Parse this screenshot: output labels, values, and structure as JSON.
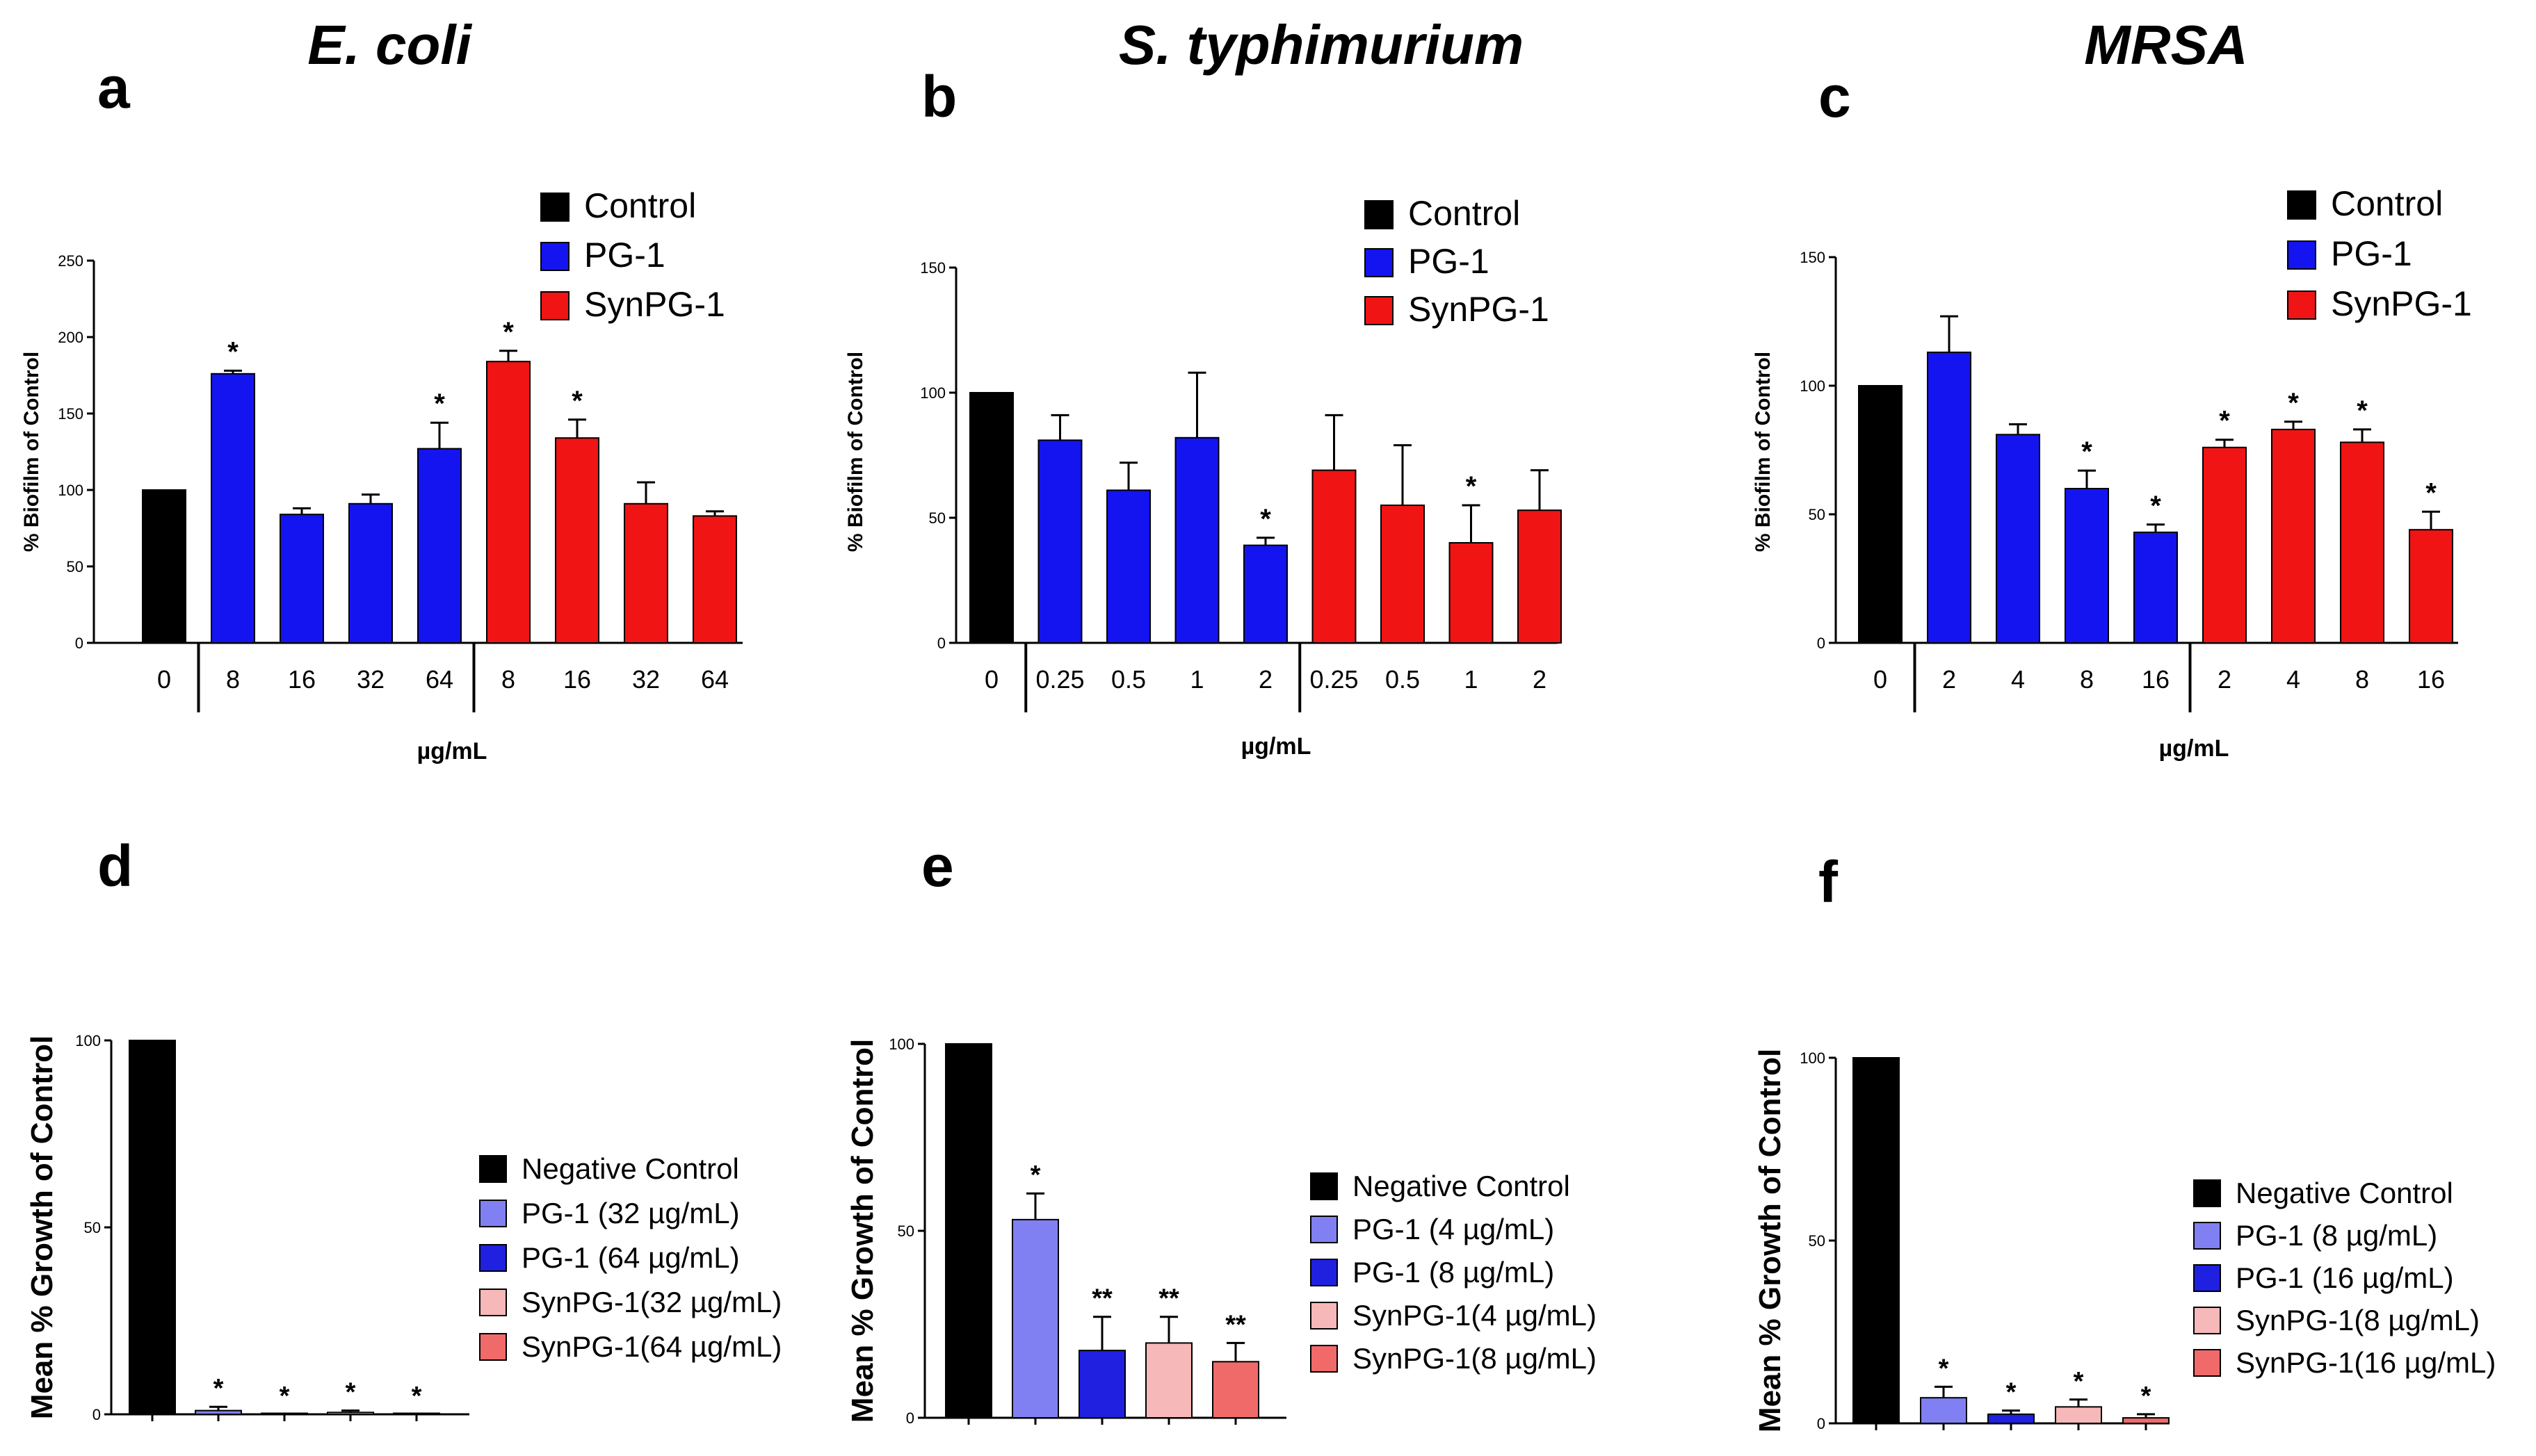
{
  "figure": {
    "organisms": [
      "E. coli",
      "S. typhimurium",
      "MRSA"
    ],
    "panel_letters": [
      "a",
      "b",
      "c",
      "d",
      "e",
      "f"
    ]
  },
  "colors": {
    "control": "#000000",
    "pg1": "#1414f0",
    "synpg1": "#f01414",
    "pg1_low": "#8080f2",
    "pg1_high": "#2020e0",
    "synpg1_low": "#f6b8b8",
    "synpg1_high": "#f06a6a"
  },
  "chart_data": [
    {
      "panel": "a",
      "organism": "E. coli",
      "type": "bar",
      "ylabel": "% Biofilm of Control",
      "xlabel": "µg/mL",
      "ylim": [
        0,
        250
      ],
      "yticks": [
        "0",
        "50",
        "100",
        "150",
        "200",
        "250"
      ],
      "categories": [
        "0",
        "8",
        "16",
        "32",
        "64",
        "8",
        "16",
        "32",
        "64"
      ],
      "groups": [
        "control",
        "pg1",
        "pg1",
        "pg1",
        "pg1",
        "synpg1",
        "synpg1",
        "synpg1",
        "synpg1"
      ],
      "values": [
        100,
        176,
        84,
        91,
        127,
        184,
        134,
        91,
        83
      ],
      "errors": [
        0,
        2,
        4,
        6,
        17,
        7,
        12,
        14,
        3
      ],
      "significance": [
        "",
        "*",
        "",
        "",
        "*",
        "*",
        "*",
        "",
        ""
      ],
      "legend": [
        "Control",
        "PG-1",
        "SynPG-1"
      ]
    },
    {
      "panel": "b",
      "organism": "S. typhimurium",
      "type": "bar",
      "ylabel": "% Biofilm of Control",
      "xlabel": "µg/mL",
      "ylim": [
        0,
        150
      ],
      "yticks": [
        "0",
        "50",
        "100",
        "150"
      ],
      "categories": [
        "0",
        "0.25",
        "0.5",
        "1",
        "2",
        "0.25",
        "0.5",
        "1",
        "2"
      ],
      "groups": [
        "control",
        "pg1",
        "pg1",
        "pg1",
        "pg1",
        "synpg1",
        "synpg1",
        "synpg1",
        "synpg1"
      ],
      "values": [
        100,
        81,
        61,
        82,
        39,
        69,
        55,
        40,
        53
      ],
      "errors": [
        0,
        10,
        11,
        26,
        3,
        22,
        24,
        15,
        16
      ],
      "significance": [
        "",
        "",
        "",
        "",
        "*",
        "",
        "",
        "*",
        ""
      ],
      "legend": [
        "Control",
        "PG-1",
        "SynPG-1"
      ]
    },
    {
      "panel": "c",
      "organism": "MRSA",
      "type": "bar",
      "ylabel": "% Biofilm of Control",
      "xlabel": "µg/mL",
      "ylim": [
        0,
        150
      ],
      "yticks": [
        "0",
        "50",
        "100",
        "150"
      ],
      "categories": [
        "0",
        "2",
        "4",
        "8",
        "16",
        "2",
        "4",
        "8",
        "16"
      ],
      "groups": [
        "control",
        "pg1",
        "pg1",
        "pg1",
        "pg1",
        "synpg1",
        "synpg1",
        "synpg1",
        "synpg1"
      ],
      "values": [
        100,
        113,
        81,
        60,
        43,
        76,
        83,
        78,
        44
      ],
      "errors": [
        0,
        14,
        4,
        7,
        3,
        3,
        3,
        5,
        7
      ],
      "significance": [
        "",
        "",
        "",
        "*",
        "*",
        "*",
        "*",
        "*",
        "*"
      ],
      "legend": [
        "Control",
        "PG-1",
        "SynPG-1"
      ]
    },
    {
      "panel": "d",
      "organism": "E. coli",
      "type": "bar",
      "ylabel": "Mean % Growth of Control",
      "ylim": [
        0,
        100
      ],
      "yticks": [
        "0",
        "50",
        "100"
      ],
      "categories": [
        "Negative Control",
        "PG-1 (32 µg/mL)",
        "PG-1 (64 µg/mL)",
        "SynPG-1(32 µg/mL)",
        "SynPG-1(64 µg/mL)"
      ],
      "groups": [
        "control",
        "pg1_low",
        "pg1_high",
        "synpg1_low",
        "synpg1_high"
      ],
      "values": [
        100,
        1,
        0,
        0.5,
        0
      ],
      "errors": [
        0,
        1,
        0,
        0.5,
        0
      ],
      "significance": [
        "",
        "*",
        "*",
        "*",
        "*"
      ],
      "legend": [
        "Negative Control",
        "PG-1 (32 µg/mL)",
        "PG-1 (64 µg/mL)",
        "SynPG-1(32 µg/mL)",
        "SynPG-1(64 µg/mL)"
      ]
    },
    {
      "panel": "e",
      "organism": "S. typhimurium",
      "type": "bar",
      "ylabel": "Mean % Growth of Control",
      "ylim": [
        0,
        100
      ],
      "yticks": [
        "0",
        "50",
        "100"
      ],
      "categories": [
        "Negative Control",
        "PG-1 (4 µg/mL)",
        "PG-1 (8 µg/mL)",
        "SynPG-1(4 µg/mL)",
        "SynPG-1(8 µg/mL)"
      ],
      "groups": [
        "control",
        "pg1_low",
        "pg1_high",
        "synpg1_low",
        "synpg1_high"
      ],
      "values": [
        100,
        53,
        18,
        20,
        15
      ],
      "errors": [
        0,
        7,
        9,
        7,
        5
      ],
      "significance": [
        "",
        "*",
        "**",
        "**",
        "**"
      ],
      "legend": [
        "Negative Control",
        "PG-1 (4 µg/mL)",
        "PG-1 (8 µg/mL)",
        "SynPG-1(4 µg/mL)",
        "SynPG-1(8 µg/mL)"
      ]
    },
    {
      "panel": "f",
      "organism": "MRSA",
      "type": "bar",
      "ylabel": "Mean % Growth of Control",
      "ylim": [
        0,
        100
      ],
      "yticks": [
        "0",
        "50",
        "100"
      ],
      "categories": [
        "Negative Control",
        "PG-1 (8 µg/mL)",
        "PG-1 (16 µg/mL)",
        "SynPG-1(8 µg/mL)",
        "SynPG-1(16 µg/mL)"
      ],
      "groups": [
        "control",
        "pg1_low",
        "pg1_high",
        "synpg1_low",
        "synpg1_high"
      ],
      "values": [
        100,
        7,
        2.5,
        4.5,
        1.5
      ],
      "errors": [
        0,
        3,
        1,
        2,
        1
      ],
      "significance": [
        "",
        "*",
        "*",
        "*",
        "*"
      ],
      "legend": [
        "Negative Control",
        "PG-1 (8 µg/mL)",
        "PG-1 (16 µg/mL)",
        "SynPG-1(8 µg/mL)",
        "SynPG-1(16 µg/mL)"
      ]
    }
  ]
}
